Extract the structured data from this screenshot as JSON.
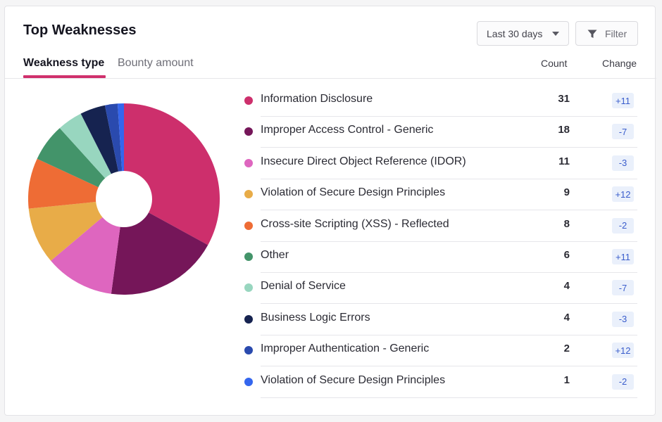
{
  "header": {
    "title": "Top Weaknesses",
    "date_range": "Last 30 days",
    "filter_label": "Filter"
  },
  "tabs": [
    {
      "label": "Weakness type",
      "active": true
    },
    {
      "label": "Bounty amount",
      "active": false
    }
  ],
  "columns": {
    "count": "Count",
    "change": "Change"
  },
  "chart_data": {
    "type": "pie",
    "categories": [
      "Information Disclosure",
      "Improper Access Control - Generic",
      "Insecure Direct Object Reference (IDOR)",
      "Violation of Secure Design Principles",
      "Cross-site Scripting (XSS) - Reflected",
      "Other",
      "Denial of Service",
      "Business Logic Errors",
      "Improper Authentication - Generic",
      "Violation of Secure Design Principles"
    ],
    "values": [
      31,
      18,
      11,
      9,
      8,
      6,
      4,
      4,
      2,
      1
    ],
    "colors": [
      "#cd2f6c",
      "#751659",
      "#de66bf",
      "#e8ac48",
      "#ee6c35",
      "#43946a",
      "#98d6bf",
      "#162350",
      "#2a4aae",
      "#3466ee"
    ]
  },
  "rows": [
    {
      "name": "Information Disclosure",
      "count": "31",
      "change": "+11",
      "color": "#cd2f6c"
    },
    {
      "name": "Improper Access Control - Generic",
      "count": "18",
      "change": "-7",
      "color": "#751659"
    },
    {
      "name": "Insecure Direct Object Reference (IDOR)",
      "count": "11",
      "change": "-3",
      "color": "#de66bf"
    },
    {
      "name": "Violation of Secure Design Principles",
      "count": "9",
      "change": "+12",
      "color": "#e8ac48"
    },
    {
      "name": "Cross-site Scripting (XSS) - Reflected",
      "count": "8",
      "change": "-2",
      "color": "#ee6c35"
    },
    {
      "name": "Other",
      "count": "6",
      "change": "+11",
      "color": "#43946a"
    },
    {
      "name": "Denial of Service",
      "count": "4",
      "change": "-7",
      "color": "#98d6bf"
    },
    {
      "name": "Business Logic Errors",
      "count": "4",
      "change": "-3",
      "color": "#162350"
    },
    {
      "name": "Improper Authentication - Generic",
      "count": "2",
      "change": "+12",
      "color": "#2a4aae"
    },
    {
      "name": "Violation of Secure Design Principles",
      "count": "1",
      "change": "-2",
      "color": "#3466ee"
    }
  ],
  "icons": {
    "dropdown": "caret-down-icon",
    "filter": "funnel-icon"
  },
  "accent_color": "#d0306c"
}
